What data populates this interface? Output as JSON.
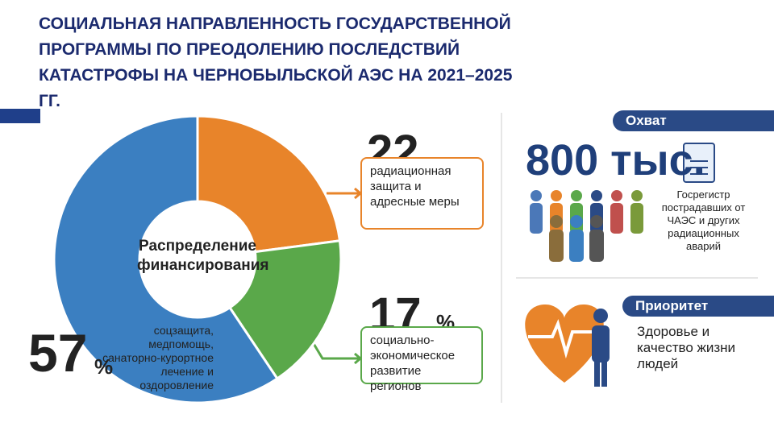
{
  "title": "СОЦИАЛЬНАЯ НАПРАВЛЕННОСТЬ ГОСУДАРСТВЕННОЙ ПРОГРАММЫ ПО ПРЕОДОЛЕНИЮ ПОСЛЕДСТВИЙ КАТАСТРОФЫ НА ЧЕРНОБЫЛЬСКОЙ АЭС НА 2021–2025 ГГ.",
  "chart_data": {
    "type": "donut",
    "center_label": "Распределение финансирования",
    "categories": [
      "радиационная защита и адресные меры",
      "социально-экономическое развитие регионов",
      "соцзащита, медпомощь, санаторно-курортное лечение и оздоровление"
    ],
    "values": [
      22,
      17,
      57
    ],
    "unit": "%",
    "colors": [
      "#e8842a",
      "#5aa84a",
      "#3b7fc1"
    ]
  },
  "coverage": {
    "header": "Охват",
    "value": "800 тыс.",
    "description": "Госрегистр пострадавших от ЧАЭС и других радиационных аварий"
  },
  "priority": {
    "header": "Приоритет",
    "description": "Здоровье и качество жизни людей"
  }
}
